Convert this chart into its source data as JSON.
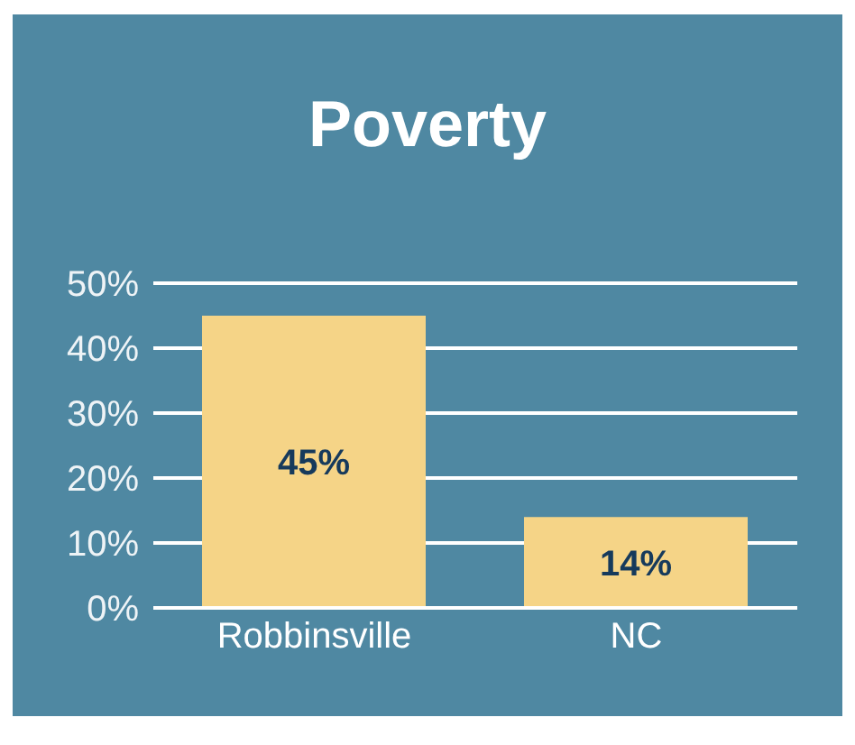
{
  "chart_data": {
    "type": "bar",
    "title": "Poverty",
    "categories": [
      "Robbinsville",
      "NC"
    ],
    "values": [
      45,
      14
    ],
    "value_labels": [
      "45%",
      "14%"
    ],
    "color": "#f5d487",
    "ylim": [
      0,
      50
    ],
    "yticks": [
      {
        "value": 0,
        "label": "0%"
      },
      {
        "value": 10,
        "label": "10%"
      },
      {
        "value": 20,
        "label": "20%"
      },
      {
        "value": 30,
        "label": "30%"
      },
      {
        "value": 40,
        "label": "40%"
      },
      {
        "value": 50,
        "label": "50%"
      }
    ],
    "grid": "y",
    "legend": false
  }
}
